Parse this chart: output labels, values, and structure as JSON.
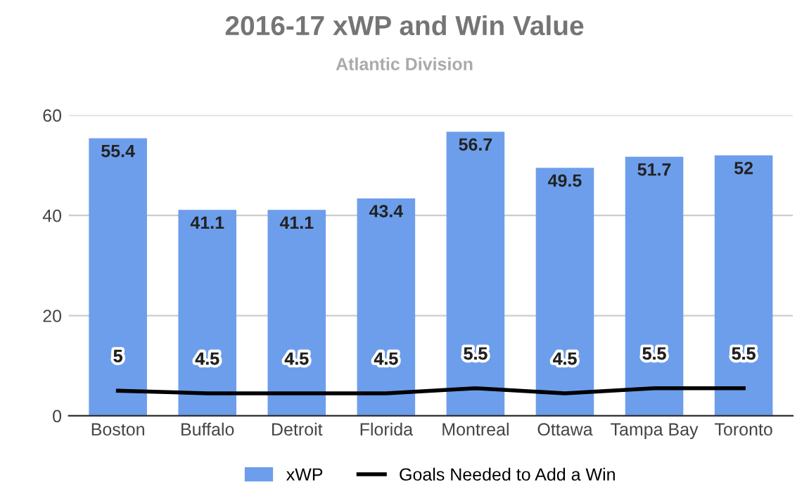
{
  "chart_data": {
    "type": "bar",
    "title": "2016-17 xWP and Win Value",
    "subtitle": "Atlantic Division",
    "categories": [
      "Boston",
      "Buffalo",
      "Detroit",
      "Florida",
      "Montreal",
      "Ottawa",
      "Tampa Bay",
      "Toronto"
    ],
    "series": [
      {
        "name": "xWP",
        "color": "#6d9eeb",
        "values": [
          55.4,
          41.1,
          41.1,
          43.4,
          56.7,
          49.5,
          51.7,
          52
        ]
      },
      {
        "name": "Goals Needed to Add a Win",
        "type": "line",
        "color": "#000000",
        "values": [
          5,
          4.5,
          4.5,
          4.5,
          5.5,
          4.5,
          5.5,
          5.5
        ]
      }
    ],
    "ylim": [
      0,
      60
    ],
    "yticks": [
      0,
      20,
      40,
      60
    ],
    "grid": "y",
    "legend": "bottom",
    "data_labels": true,
    "marker": "none",
    "line_style": "solid"
  }
}
